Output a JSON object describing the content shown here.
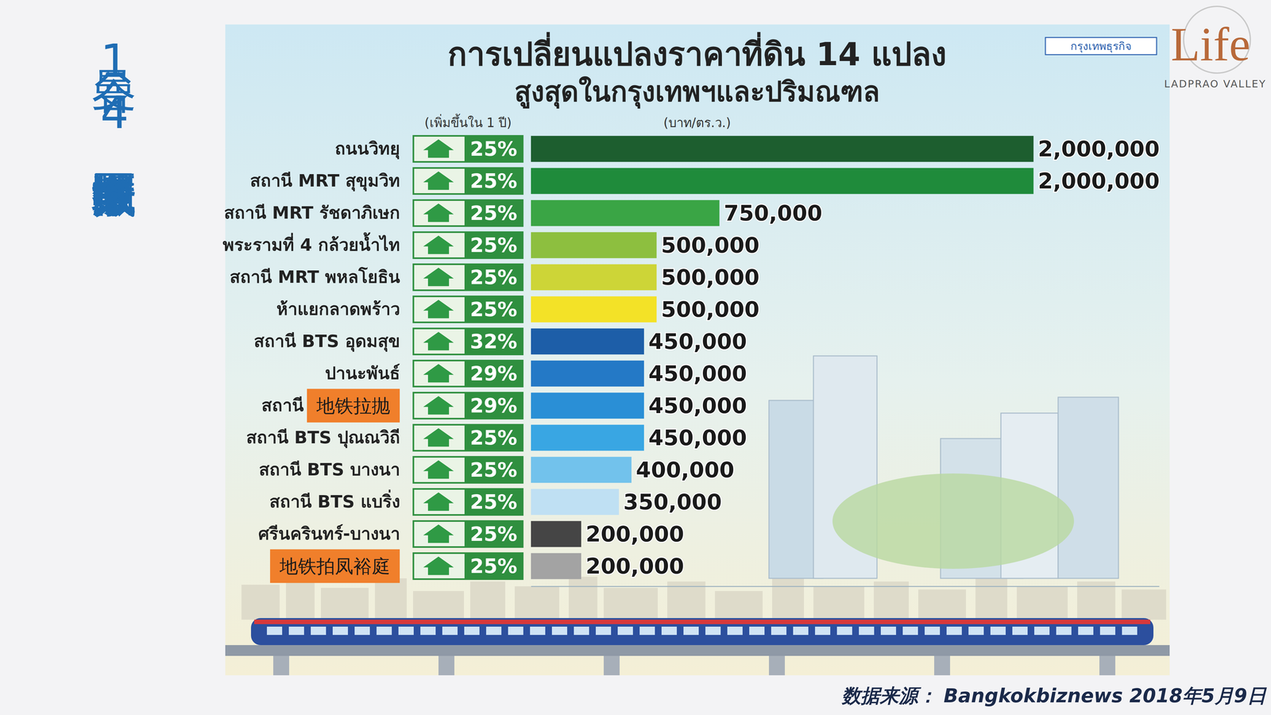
{
  "page_title": "曼谷14个涨幅最大区域数据图",
  "source": "数据来源： Bangkokbiznews 2018年5月9日",
  "logo": {
    "text": "Life",
    "subtitle": "LADPRAO VALLEY"
  },
  "publisher_badge": "กรุงเทพธุรกิจ",
  "chart_data": {
    "type": "bar",
    "orientation": "horizontal",
    "title": "การเปลี่ยนแปลงราคาที่ดิน 14 แปลง",
    "subtitle": "สูงสุดในกรุงเทพฯและปริมณฑล",
    "categories": [
      "ถนนวิทยุ",
      "สถานี MRT สุขุมวิท",
      "สถานี MRT รัชดาภิเษก",
      "พระรามที่ 4 กล้วยน้ำไท",
      "สถานี MRT พหลโยธิน",
      "ห้าแยกลาดพร้าว",
      "สถานี BTS อุดมสุข",
      "ปานะพันธ์",
      "สถานี",
      "สถานี BTS ปุณณวิถี",
      "สถานี BTS บางนา",
      "สถานี BTS แบริ่ง",
      "ศรีนครินทร์-บางนา",
      null
    ],
    "annotations": [
      null,
      null,
      null,
      null,
      null,
      null,
      null,
      null,
      "地铁拉抛",
      null,
      null,
      null,
      null,
      "地铁拍凤裕庭"
    ],
    "series": [
      {
        "name": "(เพิ่มขึ้นใน 1 ปี)",
        "type": "table",
        "color": "#2f8f3f",
        "values": [
          25,
          25,
          25,
          25,
          25,
          25,
          32,
          29,
          29,
          25,
          25,
          25,
          25,
          25
        ],
        "value_labels": [
          "25%",
          "25%",
          "25%",
          "25%",
          "25%",
          "25%",
          "32%",
          "29%",
          "29%",
          "25%",
          "25%",
          "25%",
          "25%",
          "25%"
        ]
      },
      {
        "name": "(บาท/ตร.ว.)",
        "type": "bar",
        "colors": [
          "#1d5e2f",
          "#1f8b3b",
          "#3aa545",
          "#8dbf3f",
          "#cdd537",
          "#f3e227",
          "#1d5ea8",
          "#2479c6",
          "#2a8fd6",
          "#39a6e3",
          "#72c2ec",
          "#bfe0f3",
          "#454545",
          "#a3a3a3"
        ],
        "values": [
          2000000,
          2000000,
          750000,
          500000,
          500000,
          500000,
          450000,
          450000,
          450000,
          450000,
          400000,
          350000,
          200000,
          200000
        ],
        "value_labels": [
          "2,000,000",
          "2,000,000",
          "750,000",
          "500,000",
          "500,000",
          "500,000",
          "450,000",
          "450,000",
          "450,000",
          "450,000",
          "400,000",
          "350,000",
          "200,000",
          "200,000"
        ]
      }
    ],
    "xlim": [
      0,
      2500000
    ],
    "tick_labels": false,
    "data_labels": true,
    "grid": false
  }
}
